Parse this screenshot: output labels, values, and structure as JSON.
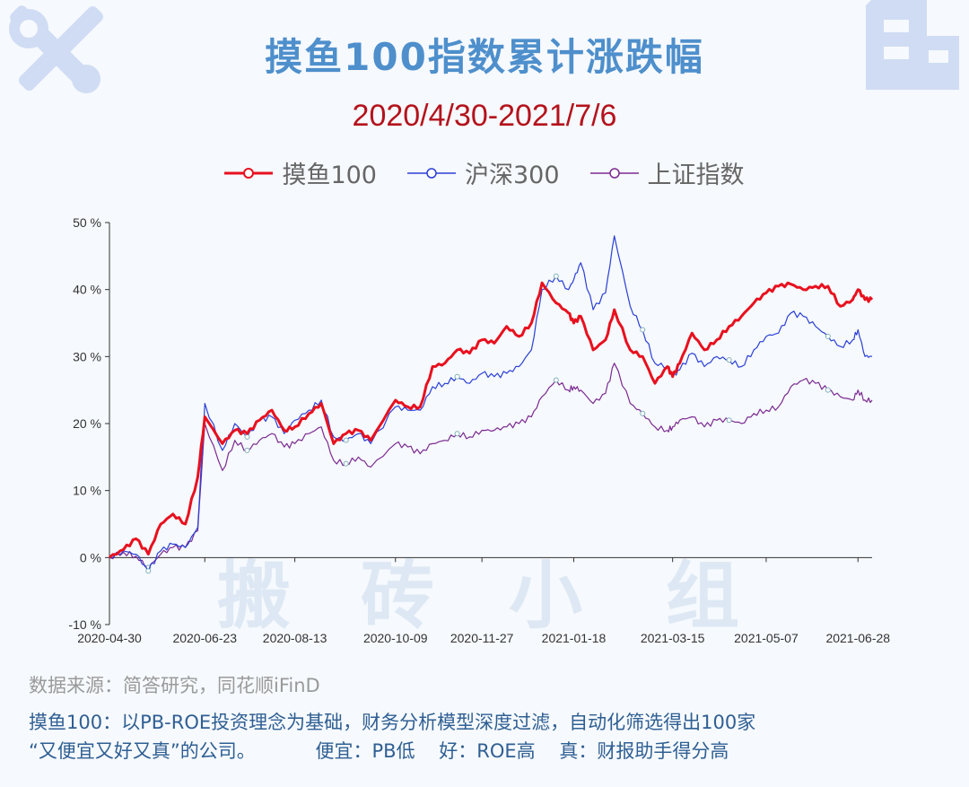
{
  "header": {
    "title": "摸鱼100指数累计涨跌幅",
    "subtitle": "2020/4/30-2021/7/6"
  },
  "legend": [
    {
      "label": "摸鱼100",
      "color": "#e8101e"
    },
    {
      "label": "沪深300",
      "color": "#2a3fd6"
    },
    {
      "label": "上证指数",
      "color": "#7b2a91"
    }
  ],
  "watermark": [
    "搬",
    "砖",
    "小",
    "组"
  ],
  "icons": {
    "top_left": "tools-icon",
    "top_right": "building-icon"
  },
  "footer": {
    "source": "数据来源：简答研究，同花顺iFinD",
    "description_line1": "摸鱼100：以PB-ROE投资理念为基础，财务分析模型深度过滤，自动化筛选得出100家",
    "description_line2": "“又便宜又好又真”的公司。          便宜：PB低    好：ROE高    真：财报助手得分高"
  },
  "chart_data": {
    "type": "line",
    "title": "摸鱼100指数累计涨跌幅",
    "subtitle": "2020/4/30-2021/7/6",
    "xlabel": "",
    "ylabel": "",
    "ylim": [
      -10,
      50
    ],
    "y_ticks": [
      -10,
      0,
      10,
      20,
      30,
      40,
      50
    ],
    "y_tick_labels": [
      "-10 %",
      "0 %",
      "10 %",
      "20 %",
      "30 %",
      "40 %",
      "50 %"
    ],
    "x_range": [
      "2020-04-30",
      "2021-07-06"
    ],
    "x_tick_labels": [
      "2020-04-30",
      "2020-06-23",
      "2020-08-13",
      "2020-10-09",
      "2020-11-27",
      "2021-01-18",
      "2021-03-15",
      "2021-05-07",
      "2021-06-28"
    ],
    "legend_position": "top-center",
    "grid": false,
    "x": [
      "2020-04-30",
      "2020-05-08",
      "2020-05-15",
      "2020-05-22",
      "2020-05-29",
      "2020-06-05",
      "2020-06-12",
      "2020-06-19",
      "2020-06-23",
      "2020-07-03",
      "2020-07-10",
      "2020-07-17",
      "2020-07-24",
      "2020-07-31",
      "2020-08-07",
      "2020-08-13",
      "2020-08-21",
      "2020-08-28",
      "2020-09-04",
      "2020-09-11",
      "2020-09-18",
      "2020-09-25",
      "2020-10-09",
      "2020-10-16",
      "2020-10-23",
      "2020-10-30",
      "2020-11-06",
      "2020-11-13",
      "2020-11-20",
      "2020-11-27",
      "2020-12-04",
      "2020-12-11",
      "2020-12-18",
      "2020-12-25",
      "2020-12-31",
      "2021-01-08",
      "2021-01-15",
      "2021-01-18",
      "2021-01-22",
      "2021-01-29",
      "2021-02-05",
      "2021-02-10",
      "2021-02-19",
      "2021-02-26",
      "2021-03-05",
      "2021-03-12",
      "2021-03-15",
      "2021-03-19",
      "2021-03-26",
      "2021-04-02",
      "2021-04-09",
      "2021-04-16",
      "2021-04-23",
      "2021-04-30",
      "2021-05-07",
      "2021-05-14",
      "2021-05-21",
      "2021-05-28",
      "2021-06-04",
      "2021-06-11",
      "2021-06-18",
      "2021-06-25",
      "2021-06-28",
      "2021-07-02",
      "2021-07-06"
    ],
    "series": [
      {
        "name": "摸鱼100",
        "color": "#e8101e",
        "width": 3,
        "values": [
          0,
          1.2,
          2.8,
          0.5,
          5.0,
          6.5,
          5.0,
          12.0,
          21.0,
          17.0,
          19.0,
          18.5,
          20.5,
          22.0,
          19.0,
          19.5,
          21.5,
          23.0,
          17.0,
          18.5,
          19.0,
          17.5,
          23.5,
          22.5,
          22.5,
          28.5,
          29.0,
          31.0,
          30.5,
          32.5,
          32.0,
          34.5,
          33.0,
          35.0,
          41.0,
          38.0,
          36.5,
          35.0,
          36.0,
          31.0,
          32.5,
          37.0,
          31.0,
          30.0,
          26.0,
          28.5,
          27.0,
          29.0,
          33.5,
          31.0,
          32.5,
          34.5,
          36.0,
          38.0,
          39.5,
          40.5,
          40.8,
          40.0,
          40.5,
          40.5,
          37.5,
          38.5,
          40.0,
          38.5,
          38.5
        ]
      },
      {
        "name": "沪深300",
        "color": "#2a3fd6",
        "width": 1.2,
        "values": [
          0,
          1.0,
          0.5,
          -2.0,
          1.0,
          2.0,
          1.5,
          4.5,
          23.0,
          16.0,
          20.0,
          18.0,
          20.5,
          21.0,
          18.5,
          20.5,
          22.0,
          23.5,
          18.0,
          17.5,
          18.5,
          17.0,
          22.5,
          22.0,
          22.0,
          25.5,
          26.0,
          27.0,
          26.0,
          27.5,
          27.0,
          27.5,
          28.5,
          31.0,
          40.0,
          42.0,
          40.0,
          41.5,
          44.0,
          37.0,
          39.5,
          48.0,
          37.5,
          34.0,
          29.0,
          28.5,
          27.0,
          28.0,
          30.5,
          28.5,
          30.0,
          29.5,
          28.5,
          31.0,
          33.0,
          33.5,
          36.5,
          36.0,
          34.5,
          33.0,
          31.5,
          32.5,
          34.0,
          30.0,
          30.0
        ]
      },
      {
        "name": "上证指数",
        "color": "#7b2a91",
        "width": 1.2,
        "values": [
          0,
          0.8,
          0.2,
          -1.5,
          0.5,
          1.5,
          1.5,
          4.0,
          20.0,
          13.0,
          17.5,
          16.0,
          17.5,
          18.5,
          16.5,
          17.0,
          18.5,
          19.5,
          14.5,
          14.0,
          15.0,
          13.5,
          17.0,
          16.5,
          15.5,
          17.0,
          17.5,
          18.5,
          18.0,
          19.0,
          19.0,
          19.5,
          20.0,
          21.0,
          24.0,
          26.5,
          25.0,
          25.5,
          25.0,
          23.0,
          24.5,
          29.0,
          23.0,
          21.5,
          19.5,
          19.0,
          19.5,
          20.5,
          21.0,
          19.5,
          20.5,
          20.5,
          20.0,
          21.5,
          22.0,
          22.5,
          25.5,
          26.5,
          26.0,
          25.0,
          24.0,
          23.5,
          25.0,
          23.5,
          23.5
        ]
      }
    ]
  }
}
